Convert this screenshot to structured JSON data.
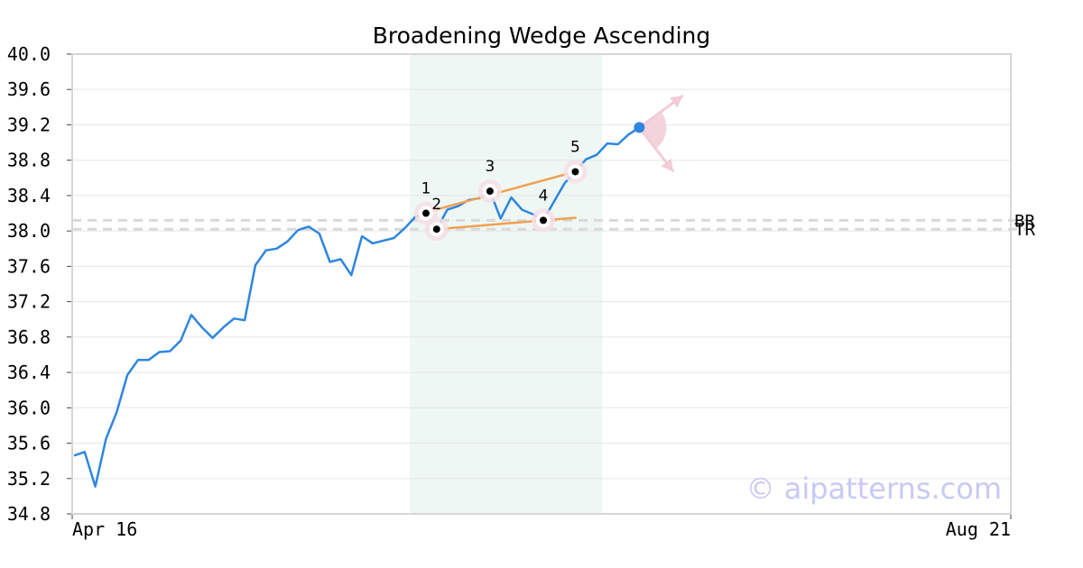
{
  "chart_data": {
    "type": "line",
    "title": "Broadening Wedge Ascending",
    "xlabel": "",
    "ylabel": "",
    "ylim": [
      34.8,
      40.0
    ],
    "y_ticks": [
      "40.0",
      "39.6",
      "39.2",
      "38.8",
      "38.4",
      "38.0",
      "37.6",
      "37.2",
      "36.8",
      "36.4",
      "36.0",
      "35.6",
      "35.2",
      "34.8"
    ],
    "x_tick_labels": [
      "Apr 16",
      "Aug 21"
    ],
    "grid": true,
    "series": [
      {
        "values": [
          35.46,
          35.5,
          35.11,
          35.65,
          35.95,
          36.37,
          36.54,
          36.54,
          36.63,
          36.64,
          36.76,
          37.05,
          36.91,
          36.79,
          36.91,
          37.01,
          36.99,
          37.61,
          37.78,
          37.8,
          37.88,
          38.01,
          38.05,
          37.97,
          37.65,
          37.68,
          37.5,
          37.94,
          37.86,
          37.89,
          37.92,
          38.03,
          38.16,
          38.2,
          38.02,
          38.24,
          38.28,
          38.35,
          38.37,
          38.45,
          38.14,
          38.38,
          38.24,
          38.19,
          38.12,
          38.33,
          38.54,
          38.67,
          38.81,
          38.86,
          38.99,
          38.98,
          39.09,
          39.17
        ],
        "color": "#2e86de"
      }
    ],
    "highlight_range_index": [
      31.5,
      49.5
    ],
    "highlight_color": "#eef7f3",
    "pattern_points": [
      {
        "label": "1",
        "index": 33,
        "value": 38.2
      },
      {
        "label": "2",
        "index": 34,
        "value": 38.02
      },
      {
        "label": "3",
        "index": 39,
        "value": 38.45
      },
      {
        "label": "4",
        "index": 44,
        "value": 38.12
      },
      {
        "label": "5",
        "index": 47,
        "value": 38.67
      }
    ],
    "trend_lines": [
      {
        "from_index": 33,
        "from_value": 38.21,
        "to_index": 47,
        "to_value": 38.67
      },
      {
        "from_index": 34,
        "from_value": 38.02,
        "to_index": 47.1,
        "to_value": 38.15
      }
    ],
    "trend_color": "#f0a050",
    "reference_lines": [
      {
        "label": "BR",
        "value": 38.12
      },
      {
        "label": "TR",
        "value": 38.02
      }
    ],
    "last_point": {
      "index": 53,
      "value": 39.17,
      "color": "#2e86de"
    },
    "projection_arrows": [
      {
        "to_index": 57.1,
        "to_value": 39.53
      },
      {
        "to_index": 56.2,
        "to_value": 38.67
      }
    ],
    "projection_color": "#f2ccd6",
    "watermark": "© aipatterns.com"
  }
}
